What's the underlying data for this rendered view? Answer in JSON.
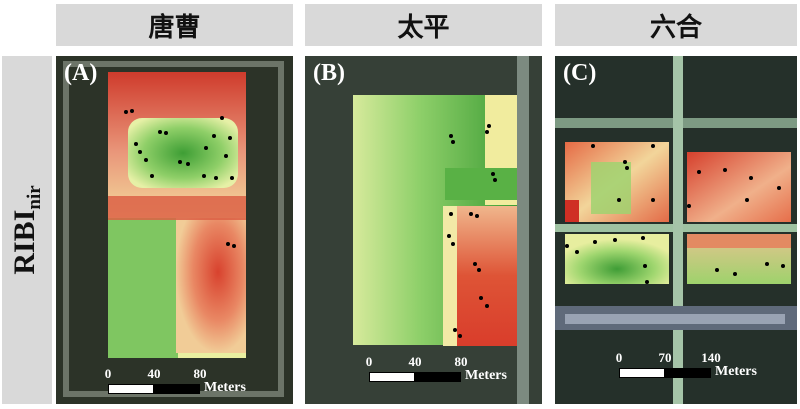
{
  "columns": [
    {
      "title": "唐曹"
    },
    {
      "title": "太平"
    },
    {
      "title": "六合"
    }
  ],
  "row_label": {
    "main": "RIBI",
    "sub": "nir"
  },
  "panels": [
    {
      "label": "(A)",
      "ticks": [
        "0",
        "40",
        "80"
      ],
      "unit": "Meters"
    },
    {
      "label": "(B)",
      "ticks": [
        "0",
        "40",
        "80"
      ],
      "unit": "Meters"
    },
    {
      "label": "(C)",
      "ticks": [
        "0",
        "70",
        "140"
      ],
      "unit": "Meters"
    }
  ],
  "colors": {
    "high": "#d73027",
    "mid": "#f5f0a8",
    "low": "#41a33a",
    "sample_points": "#000000"
  }
}
